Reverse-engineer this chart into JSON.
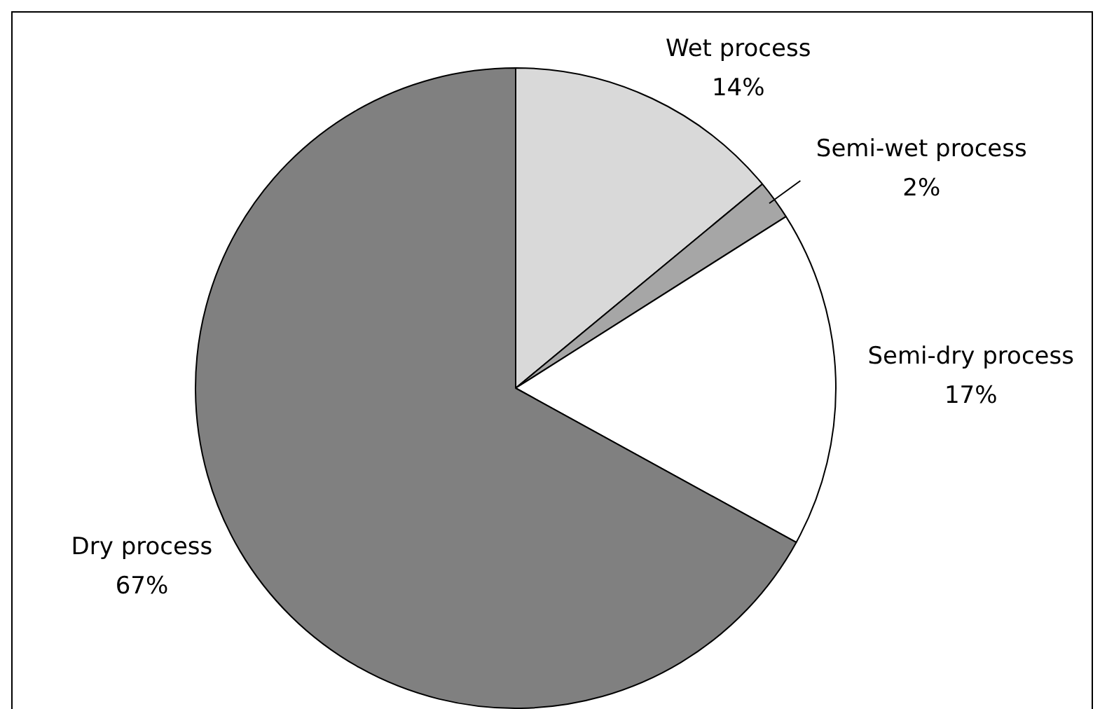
{
  "chart_data": {
    "type": "pie",
    "categories": [
      "Wet process",
      "Semi-wet process",
      "Semi-dry process",
      "Dry process"
    ],
    "values": [
      14,
      2,
      17,
      67
    ],
    "value_labels": [
      "14%",
      "2%",
      "17%",
      "67%"
    ],
    "colors": [
      "#d9d9d9",
      "#a6a6a6",
      "#ffffff",
      "#808080"
    ],
    "legend": false
  }
}
